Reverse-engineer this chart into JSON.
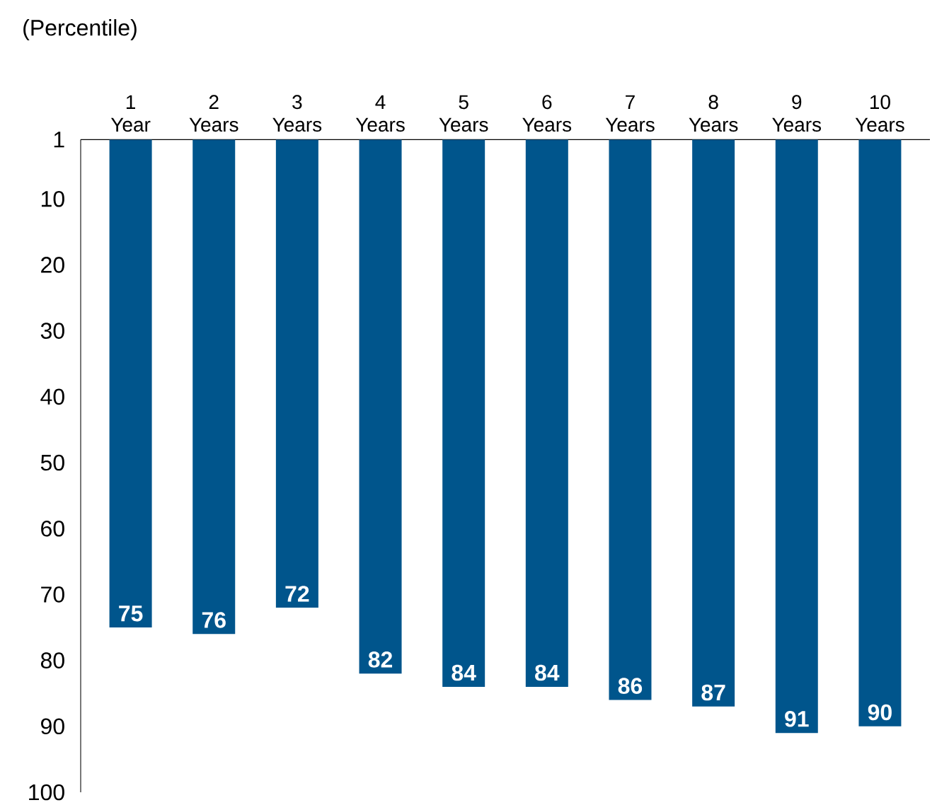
{
  "chart_data": {
    "type": "bar",
    "ylabel": "(Percentile)",
    "categories": [
      "1 Year",
      "2 Years",
      "3 Years",
      "4 Years",
      "5 Years",
      "6 Years",
      "7 Years",
      "8 Years",
      "9 Years",
      "10 Years"
    ],
    "values": [
      75,
      76,
      72,
      82,
      84,
      84,
      86,
      87,
      91,
      90
    ],
    "color": "#00558c",
    "ylim": [
      100,
      1
    ],
    "yticks": [
      1,
      10,
      20,
      30,
      40,
      50,
      60,
      70,
      80,
      90,
      100
    ],
    "data_labels": true
  }
}
